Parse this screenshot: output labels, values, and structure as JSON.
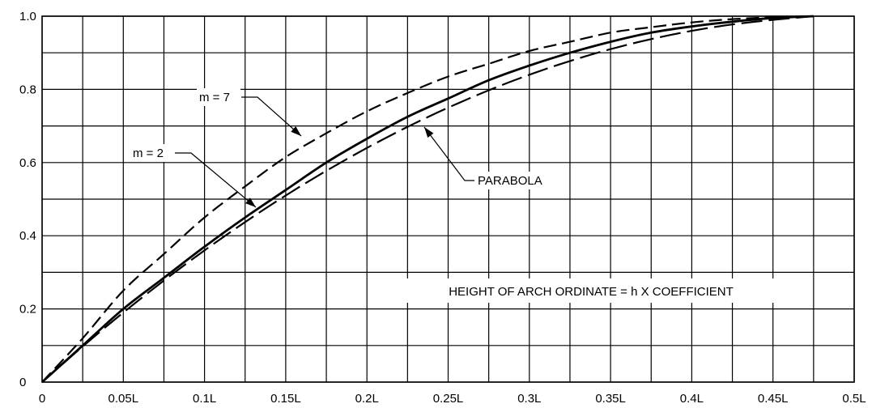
{
  "chart_data": {
    "type": "line",
    "title": "",
    "xlabel": "",
    "ylabel": "",
    "xlim": [
      0,
      0.5
    ],
    "ylim": [
      0,
      1.0
    ],
    "grid": true,
    "x_ticks": [
      {
        "value": 0,
        "label": "0"
      },
      {
        "value": 0.05,
        "label": "0.05L"
      },
      {
        "value": 0.1,
        "label": "0.1L"
      },
      {
        "value": 0.15,
        "label": "0.15L"
      },
      {
        "value": 0.2,
        "label": "0.2L"
      },
      {
        "value": 0.25,
        "label": "0.25L"
      },
      {
        "value": 0.3,
        "label": "0.3L"
      },
      {
        "value": 0.35,
        "label": "0.35L"
      },
      {
        "value": 0.4,
        "label": "0.4L"
      },
      {
        "value": 0.45,
        "label": "0.45L"
      },
      {
        "value": 0.5,
        "label": "0.5L"
      }
    ],
    "y_ticks": [
      {
        "value": 0,
        "label": "0"
      },
      {
        "value": 0.2,
        "label": "0.2"
      },
      {
        "value": 0.4,
        "label": "0.4"
      },
      {
        "value": 0.6,
        "label": "0.6"
      },
      {
        "value": 0.8,
        "label": "0.8"
      },
      {
        "value": 1.0,
        "label": "1.0"
      }
    ],
    "series": [
      {
        "name": "m = 7",
        "style": "dashed",
        "x": [
          0,
          0.025,
          0.05,
          0.075,
          0.1,
          0.125,
          0.15,
          0.175,
          0.2,
          0.225,
          0.25,
          0.275,
          0.3,
          0.325,
          0.35,
          0.375,
          0.4,
          0.425,
          0.45,
          0.475
        ],
        "y": [
          0,
          0.12,
          0.25,
          0.35,
          0.45,
          0.535,
          0.615,
          0.68,
          0.74,
          0.79,
          0.835,
          0.87,
          0.905,
          0.93,
          0.955,
          0.97,
          0.983,
          0.992,
          0.997,
          1.0
        ]
      },
      {
        "name": "m = 2",
        "style": "solid",
        "x": [
          0,
          0.025,
          0.05,
          0.075,
          0.1,
          0.125,
          0.15,
          0.175,
          0.2,
          0.225,
          0.25,
          0.275,
          0.3,
          0.325,
          0.35,
          0.375,
          0.4,
          0.425,
          0.45,
          0.475
        ],
        "y": [
          0,
          0.1,
          0.2,
          0.285,
          0.37,
          0.45,
          0.525,
          0.6,
          0.665,
          0.725,
          0.775,
          0.825,
          0.865,
          0.9,
          0.93,
          0.955,
          0.972,
          0.985,
          0.995,
          1.0
        ]
      },
      {
        "name": "PARABOLA",
        "style": "longdash",
        "x": [
          0,
          0.025,
          0.05,
          0.075,
          0.1,
          0.125,
          0.15,
          0.175,
          0.2,
          0.225,
          0.25,
          0.275,
          0.3,
          0.325,
          0.35,
          0.375,
          0.4,
          0.425,
          0.45,
          0.475
        ],
        "y": [
          0,
          0.0975,
          0.19,
          0.2775,
          0.36,
          0.4375,
          0.51,
          0.5775,
          0.64,
          0.6975,
          0.75,
          0.7975,
          0.84,
          0.8775,
          0.91,
          0.9375,
          0.96,
          0.9775,
          0.99,
          1.0
        ]
      }
    ],
    "annotations": [
      {
        "id": "m7",
        "text": "m = 7",
        "points_to_series": "m = 7"
      },
      {
        "id": "m2",
        "text": "m = 2",
        "points_to_series": "m = 2"
      },
      {
        "id": "parabola",
        "text": "PARABOLA",
        "points_to_series": "PARABOLA"
      },
      {
        "id": "note",
        "text": "HEIGHT OF ARCH ORDINATE = h X COEFFICIENT"
      }
    ]
  }
}
